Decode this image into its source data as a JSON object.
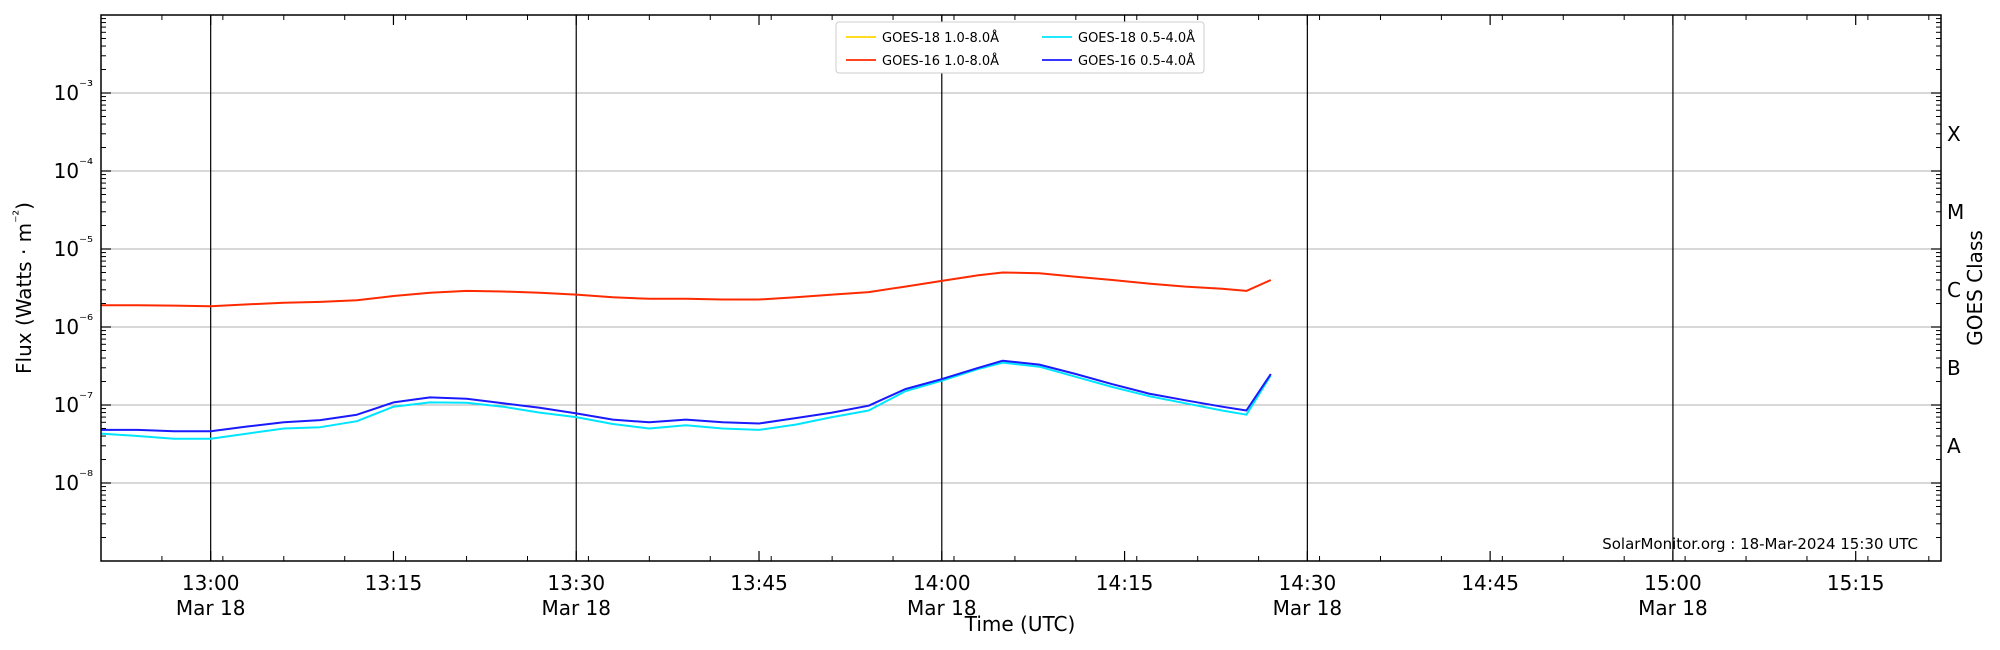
{
  "chart_data": {
    "type": "line",
    "title": "",
    "xlabel": "Time (UTC)",
    "ylabel": "Flux (Watts · m⁻²)",
    "y2label": "GOES Class",
    "yscale": "log",
    "ylim": [
      1e-09,
      0.01
    ],
    "xlim": [
      "2024-03-18T12:51",
      "2024-03-18T15:22"
    ],
    "grid": "horizontal gridlines at each decade; vertical lines at 30-minute marks",
    "legend_location": "top-center",
    "watermark": "SolarMonitor.org : 18-Mar-2024 15:30 UTC",
    "x_ticks": [
      {
        "time": "2024-03-18T13:00",
        "label": "13:00",
        "sublabel": "Mar 18"
      },
      {
        "time": "2024-03-18T13:15",
        "label": "13:15",
        "sublabel": ""
      },
      {
        "time": "2024-03-18T13:30",
        "label": "13:30",
        "sublabel": "Mar 18"
      },
      {
        "time": "2024-03-18T13:45",
        "label": "13:45",
        "sublabel": ""
      },
      {
        "time": "2024-03-18T14:00",
        "label": "14:00",
        "sublabel": "Mar 18"
      },
      {
        "time": "2024-03-18T14:15",
        "label": "14:15",
        "sublabel": ""
      },
      {
        "time": "2024-03-18T14:30",
        "label": "14:30",
        "sublabel": "Mar 18"
      },
      {
        "time": "2024-03-18T14:45",
        "label": "14:45",
        "sublabel": ""
      },
      {
        "time": "2024-03-18T15:00",
        "label": "15:00",
        "sublabel": "Mar 18"
      },
      {
        "time": "2024-03-18T15:15",
        "label": "15:15",
        "sublabel": ""
      }
    ],
    "vertical_lines": [
      "2024-03-18T13:00",
      "2024-03-18T13:30",
      "2024-03-18T14:00",
      "2024-03-18T14:30",
      "2024-03-18T15:00"
    ],
    "y_ticks": [
      {
        "value": 1e-08,
        "label": "10⁻⁸"
      },
      {
        "value": 1e-07,
        "label": "10⁻⁷"
      },
      {
        "value": 1e-06,
        "label": "10⁻⁶"
      },
      {
        "value": 1e-05,
        "label": "10⁻⁵"
      },
      {
        "value": 0.0001,
        "label": "10⁻⁴"
      },
      {
        "value": 0.001,
        "label": "10⁻³"
      }
    ],
    "goes_classes": [
      {
        "label": "A",
        "value": 3e-08
      },
      {
        "label": "B",
        "value": 3e-07
      },
      {
        "label": "C",
        "value": 3e-06
      },
      {
        "label": "M",
        "value": 3e-05
      },
      {
        "label": "X",
        "value": 0.0003
      }
    ],
    "series": [
      {
        "name": "GOES-18 1.0-8.0Å",
        "color": "#ffd700",
        "x": [],
        "y": []
      },
      {
        "name": "GOES-16 1.0-8.0Å",
        "color": "#ff2a00",
        "x": [
          "2024-03-18T12:51",
          "2024-03-18T12:54",
          "2024-03-18T12:57",
          "2024-03-18T13:00",
          "2024-03-18T13:03",
          "2024-03-18T13:06",
          "2024-03-18T13:09",
          "2024-03-18T13:12",
          "2024-03-18T13:15",
          "2024-03-18T13:18",
          "2024-03-18T13:21",
          "2024-03-18T13:24",
          "2024-03-18T13:27",
          "2024-03-18T13:30",
          "2024-03-18T13:33",
          "2024-03-18T13:36",
          "2024-03-18T13:39",
          "2024-03-18T13:42",
          "2024-03-18T13:45",
          "2024-03-18T13:48",
          "2024-03-18T13:51",
          "2024-03-18T13:54",
          "2024-03-18T13:57",
          "2024-03-18T14:00",
          "2024-03-18T14:03",
          "2024-03-18T14:05",
          "2024-03-18T14:08",
          "2024-03-18T14:11",
          "2024-03-18T14:14",
          "2024-03-18T14:17",
          "2024-03-18T14:20",
          "2024-03-18T14:23",
          "2024-03-18T14:25",
          "2024-03-18T14:27"
        ],
        "y": [
          1.9e-06,
          1.9e-06,
          1.88e-06,
          1.85e-06,
          1.95e-06,
          2.05e-06,
          2.1e-06,
          2.2e-06,
          2.5e-06,
          2.75e-06,
          2.9e-06,
          2.85e-06,
          2.75e-06,
          2.6e-06,
          2.4e-06,
          2.3e-06,
          2.3e-06,
          2.25e-06,
          2.25e-06,
          2.4e-06,
          2.6e-06,
          2.8e-06,
          3.3e-06,
          3.9e-06,
          4.6e-06,
          5e-06,
          4.9e-06,
          4.4e-06,
          4e-06,
          3.6e-06,
          3.3e-06,
          3.1e-06,
          2.9e-06,
          4e-06
        ]
      },
      {
        "name": "GOES-18 0.5-4.0Å",
        "color": "#00e5ff",
        "x": [
          "2024-03-18T12:51",
          "2024-03-18T12:54",
          "2024-03-18T12:57",
          "2024-03-18T13:00",
          "2024-03-18T13:03",
          "2024-03-18T13:06",
          "2024-03-18T13:09",
          "2024-03-18T13:12",
          "2024-03-18T13:15",
          "2024-03-18T13:18",
          "2024-03-18T13:21",
          "2024-03-18T13:24",
          "2024-03-18T13:27",
          "2024-03-18T13:30",
          "2024-03-18T13:33",
          "2024-03-18T13:36",
          "2024-03-18T13:39",
          "2024-03-18T13:42",
          "2024-03-18T13:45",
          "2024-03-18T13:48",
          "2024-03-18T13:51",
          "2024-03-18T13:54",
          "2024-03-18T13:57",
          "2024-03-18T14:00",
          "2024-03-18T14:03",
          "2024-03-18T14:05",
          "2024-03-18T14:08",
          "2024-03-18T14:11",
          "2024-03-18T14:14",
          "2024-03-18T14:17",
          "2024-03-18T14:20",
          "2024-03-18T14:23",
          "2024-03-18T14:25",
          "2024-03-18T14:27"
        ],
        "y": [
          4.3e-08,
          4e-08,
          3.7e-08,
          3.7e-08,
          4.3e-08,
          5e-08,
          5.2e-08,
          6.2e-08,
          9.5e-08,
          1.08e-07,
          1.07e-07,
          9.5e-08,
          8e-08,
          7e-08,
          5.7e-08,
          5e-08,
          5.5e-08,
          5e-08,
          4.8e-08,
          5.6e-08,
          7e-08,
          8.5e-08,
          1.5e-07,
          2.05e-07,
          2.9e-07,
          3.5e-07,
          3.1e-07,
          2.3e-07,
          1.7e-07,
          1.3e-07,
          1.05e-07,
          8.5e-08,
          7.5e-08,
          2.4e-07
        ]
      },
      {
        "name": "GOES-16 0.5-4.0Å",
        "color": "#1a1aff",
        "x": [
          "2024-03-18T12:51",
          "2024-03-18T12:54",
          "2024-03-18T12:57",
          "2024-03-18T13:00",
          "2024-03-18T13:03",
          "2024-03-18T13:06",
          "2024-03-18T13:09",
          "2024-03-18T13:12",
          "2024-03-18T13:15",
          "2024-03-18T13:18",
          "2024-03-18T13:21",
          "2024-03-18T13:24",
          "2024-03-18T13:27",
          "2024-03-18T13:30",
          "2024-03-18T13:33",
          "2024-03-18T13:36",
          "2024-03-18T13:39",
          "2024-03-18T13:42",
          "2024-03-18T13:45",
          "2024-03-18T13:48",
          "2024-03-18T13:51",
          "2024-03-18T13:54",
          "2024-03-18T13:57",
          "2024-03-18T14:00",
          "2024-03-18T14:03",
          "2024-03-18T14:05",
          "2024-03-18T14:08",
          "2024-03-18T14:11",
          "2024-03-18T14:14",
          "2024-03-18T14:17",
          "2024-03-18T14:20",
          "2024-03-18T14:23",
          "2024-03-18T14:25",
          "2024-03-18T14:27"
        ],
        "y": [
          4.8e-08,
          4.8e-08,
          4.6e-08,
          4.6e-08,
          5.3e-08,
          6e-08,
          6.4e-08,
          7.5e-08,
          1.08e-07,
          1.25e-07,
          1.2e-07,
          1.05e-07,
          9.2e-08,
          7.8e-08,
          6.5e-08,
          6e-08,
          6.5e-08,
          6e-08,
          5.8e-08,
          6.8e-08,
          8e-08,
          9.8e-08,
          1.6e-07,
          2.15e-07,
          3e-07,
          3.7e-07,
          3.3e-07,
          2.5e-07,
          1.85e-07,
          1.4e-07,
          1.15e-07,
          9.5e-08,
          8.5e-08,
          2.5e-07
        ]
      }
    ]
  }
}
